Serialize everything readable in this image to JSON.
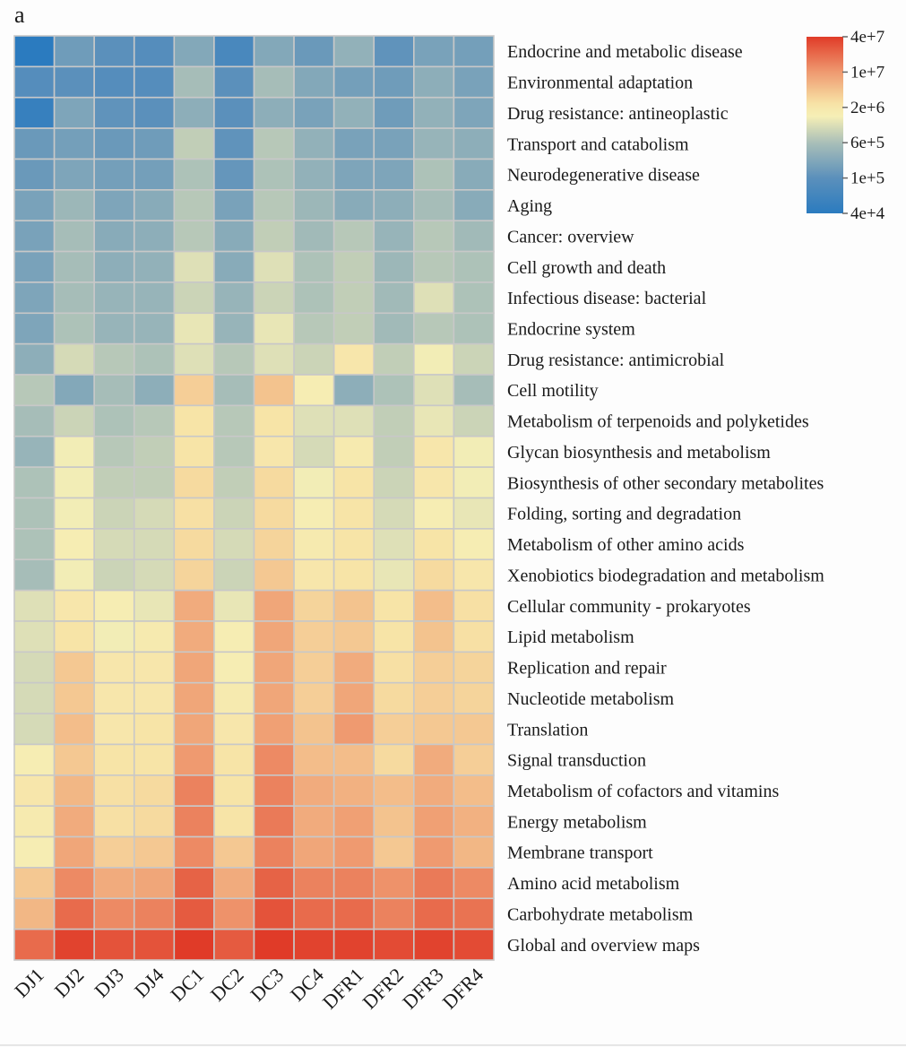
{
  "panel_label": "a",
  "chart_data": {
    "type": "heatmap",
    "title": "",
    "value_scale": "log10 abundance",
    "columns": [
      "DJ1",
      "DJ2",
      "DJ3",
      "DJ4",
      "DC1",
      "DC2",
      "DC3",
      "DC4",
      "DFR1",
      "DFR2",
      "DFR3",
      "DFR4"
    ],
    "rows": [
      "Endocrine and metabolic disease",
      "Environmental adaptation",
      "Drug resistance: antineoplastic",
      "Transport and catabolism",
      "Neurodegenerative disease",
      "Aging",
      "Cancer: overview",
      "Cell growth and death",
      "Infectious disease: bacterial",
      "Endocrine system",
      "Drug resistance: antimicrobial",
      "Cell motility",
      "Metabolism of terpenoids and polyketides",
      "Glycan biosynthesis and metabolism",
      "Biosynthesis of other secondary metabolites",
      "Folding, sorting and degradation",
      "Metabolism of other amino acids",
      "Xenobiotics biodegradation and metabolism",
      "Cellular community - prokaryotes",
      "Lipid metabolism",
      "Replication and repair",
      "Nucleotide metabolism",
      "Translation",
      "Signal transduction",
      "Metabolism of cofactors and vitamins",
      "Energy metabolism",
      "Membrane transport",
      "Amino acid metabolism",
      "Carbohydrate metabolism",
      "Global and overview maps"
    ],
    "log10_values": [
      [
        4.6,
        5.2,
        5.0,
        4.95,
        5.4,
        4.85,
        5.4,
        5.15,
        5.55,
        5.05,
        5.3,
        5.25
      ],
      [
        4.95,
        5.0,
        4.95,
        4.95,
        5.75,
        5.0,
        5.75,
        5.4,
        5.25,
        5.2,
        5.5,
        5.3
      ],
      [
        4.7,
        5.35,
        5.05,
        5.0,
        5.5,
        5.0,
        5.5,
        5.3,
        5.55,
        5.2,
        5.55,
        5.35
      ],
      [
        5.15,
        5.25,
        5.15,
        5.2,
        5.9,
        5.05,
        5.85,
        5.55,
        5.3,
        5.3,
        5.6,
        5.5
      ],
      [
        5.15,
        5.35,
        5.25,
        5.25,
        5.8,
        5.1,
        5.8,
        5.55,
        5.35,
        5.35,
        5.8,
        5.45
      ],
      [
        5.3,
        5.65,
        5.35,
        5.45,
        5.85,
        5.3,
        5.85,
        5.65,
        5.45,
        5.5,
        5.75,
        5.45
      ],
      [
        5.3,
        5.75,
        5.45,
        5.5,
        5.85,
        5.45,
        5.9,
        5.7,
        5.85,
        5.6,
        5.85,
        5.7
      ],
      [
        5.3,
        5.75,
        5.5,
        5.55,
        6.05,
        5.45,
        6.05,
        5.8,
        5.9,
        5.65,
        5.85,
        5.8
      ],
      [
        5.35,
        5.75,
        5.6,
        5.6,
        5.95,
        5.6,
        5.95,
        5.8,
        5.9,
        5.7,
        6.05,
        5.8
      ],
      [
        5.35,
        5.8,
        5.6,
        5.6,
        6.1,
        5.6,
        6.1,
        5.85,
        5.9,
        5.7,
        5.85,
        5.8
      ],
      [
        5.5,
        6.0,
        5.85,
        5.8,
        6.05,
        5.85,
        6.05,
        5.95,
        6.3,
        5.9,
        6.15,
        5.95
      ],
      [
        5.85,
        5.4,
        5.75,
        5.5,
        6.55,
        5.75,
        6.65,
        6.2,
        5.5,
        5.8,
        6.05,
        5.75
      ],
      [
        5.75,
        5.95,
        5.8,
        5.85,
        6.35,
        5.85,
        6.35,
        6.05,
        6.05,
        5.9,
        6.1,
        5.95
      ],
      [
        5.6,
        6.15,
        5.85,
        5.9,
        6.35,
        5.85,
        6.3,
        6.0,
        6.25,
        5.9,
        6.3,
        6.15
      ],
      [
        5.8,
        6.15,
        5.9,
        5.9,
        6.45,
        5.9,
        6.45,
        6.15,
        6.35,
        5.95,
        6.3,
        6.15
      ],
      [
        5.8,
        6.15,
        5.95,
        6.0,
        6.4,
        5.95,
        6.45,
        6.2,
        6.35,
        6.0,
        6.2,
        6.1
      ],
      [
        5.8,
        6.2,
        6.0,
        6.0,
        6.45,
        6.0,
        6.5,
        6.25,
        6.35,
        6.05,
        6.35,
        6.2
      ],
      [
        5.75,
        6.15,
        5.95,
        6.0,
        6.5,
        5.95,
        6.6,
        6.3,
        6.35,
        6.1,
        6.45,
        6.3
      ],
      [
        6.05,
        6.3,
        6.2,
        6.1,
        6.85,
        6.1,
        6.9,
        6.5,
        6.65,
        6.35,
        6.7,
        6.4
      ],
      [
        6.05,
        6.35,
        6.15,
        6.25,
        6.85,
        6.2,
        6.9,
        6.55,
        6.6,
        6.35,
        6.65,
        6.4
      ],
      [
        6.0,
        6.6,
        6.3,
        6.3,
        6.9,
        6.2,
        6.9,
        6.55,
        6.85,
        6.4,
        6.55,
        6.5
      ],
      [
        6.0,
        6.6,
        6.3,
        6.3,
        6.9,
        6.25,
        6.9,
        6.55,
        6.9,
        6.45,
        6.55,
        6.5
      ],
      [
        6.0,
        6.7,
        6.3,
        6.35,
        6.9,
        6.3,
        6.95,
        6.65,
        7.0,
        6.55,
        6.6,
        6.6
      ],
      [
        6.2,
        6.6,
        6.35,
        6.35,
        7.0,
        6.35,
        7.1,
        6.7,
        6.7,
        6.45,
        6.85,
        6.55
      ],
      [
        6.3,
        6.75,
        6.4,
        6.45,
        7.15,
        6.35,
        7.15,
        6.85,
        6.8,
        6.7,
        6.85,
        6.7
      ],
      [
        6.25,
        6.85,
        6.4,
        6.45,
        7.15,
        6.35,
        7.2,
        6.85,
        6.95,
        6.65,
        6.95,
        6.8
      ],
      [
        6.2,
        6.9,
        6.55,
        6.6,
        7.1,
        6.6,
        7.15,
        6.9,
        7.0,
        6.6,
        7.0,
        6.75
      ],
      [
        6.6,
        7.1,
        6.85,
        6.9,
        7.35,
        6.85,
        7.35,
        7.15,
        7.15,
        7.05,
        7.2,
        7.1
      ],
      [
        6.75,
        7.3,
        7.1,
        7.15,
        7.4,
        7.05,
        7.45,
        7.3,
        7.3,
        7.15,
        7.3,
        7.25
      ],
      [
        7.3,
        7.55,
        7.45,
        7.45,
        7.65,
        7.4,
        7.65,
        7.55,
        7.55,
        7.5,
        7.55,
        7.5
      ]
    ],
    "legend": {
      "placement": "top-right",
      "tick_labels": [
        "4e+7",
        "1e+7",
        "2e+6",
        "6e+5",
        "1e+5",
        "4e+4"
      ],
      "tick_values": [
        40000000.0,
        10000000.0,
        2000000.0,
        600000.0,
        100000.0,
        40000.0
      ],
      "colors": [
        "#e03b28",
        "#ef9a70",
        "#f7e3a6",
        "#f6efb6",
        "#a9bfb8",
        "#5b90bb",
        "#2b7bbf"
      ],
      "color_stops": [
        1.0,
        0.8,
        0.62,
        0.55,
        0.4,
        0.2,
        0.0
      ]
    },
    "grid_line_color": "#c8c8c8"
  }
}
